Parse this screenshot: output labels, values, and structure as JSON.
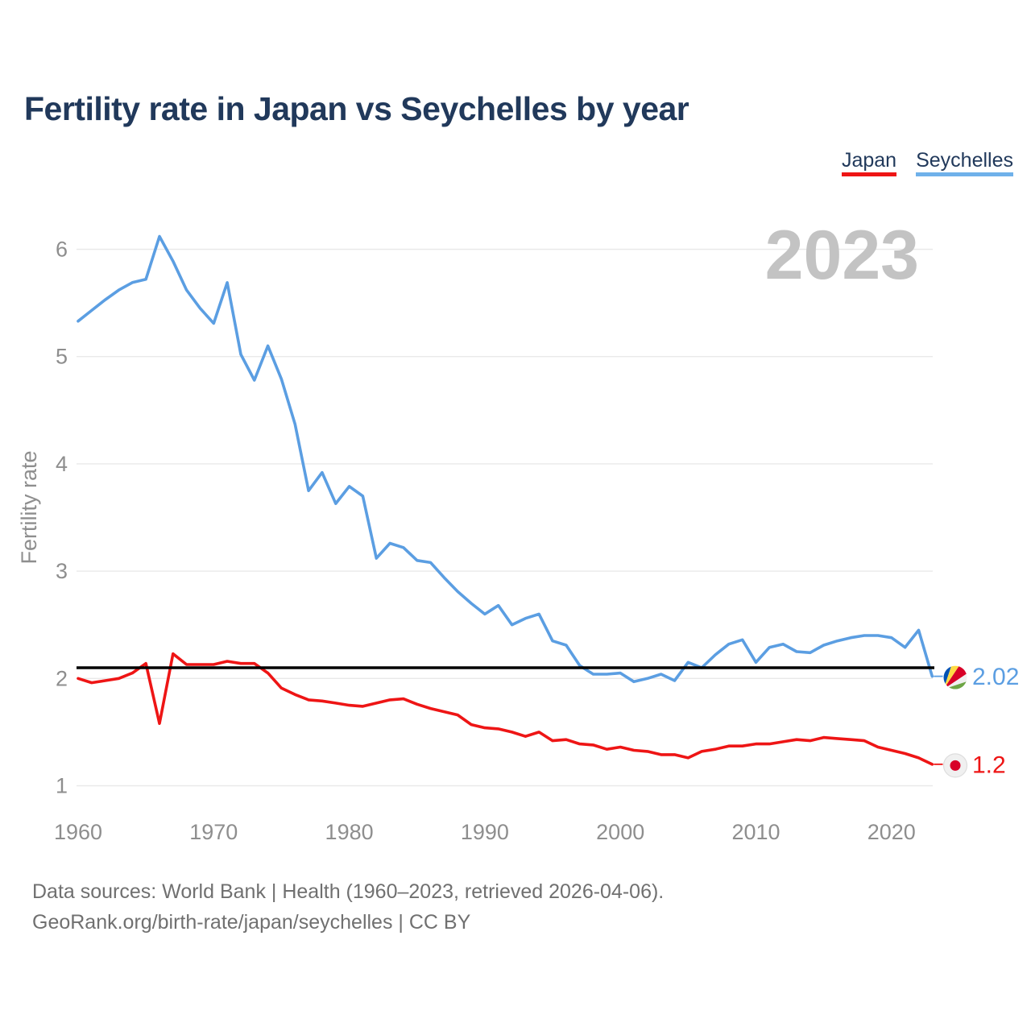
{
  "page": {
    "title": "Fertility rate in Japan vs Seychelles by year",
    "background_color": "#ffffff"
  },
  "legend": {
    "items": [
      {
        "label": "Japan",
        "color": "#ee1515"
      },
      {
        "label": "Seychelles",
        "color": "#6fb1ea"
      }
    ]
  },
  "footer": {
    "line1": "Data sources: World Bank | Health (1960–2023, retrieved 2026-04-06).",
    "line2": "GeoRank.org/birth-rate/japan/seychelles | CC BY"
  },
  "chart_data": {
    "type": "line",
    "title": "Fertility rate in Japan vs Seychelles by year",
    "xlabel": "",
    "ylabel": "Fertility rate",
    "watermark": "2023",
    "grid": "horizontal",
    "legend_position": "top-right",
    "axis_text_color": "#8e8e8e",
    "gridline_color": "#e9e9e9",
    "watermark_color": "#c3c3c3",
    "reference_line": {
      "value": 2.1,
      "color": "#000000"
    },
    "y_ticks": [
      1,
      2,
      3,
      4,
      5,
      6
    ],
    "x_ticks": [
      1960,
      1970,
      1980,
      1990,
      2000,
      2010,
      2020
    ],
    "ylim": [
      0.85,
      6.35
    ],
    "xlim": [
      1960,
      2023
    ],
    "x": [
      1960,
      1961,
      1962,
      1963,
      1964,
      1965,
      1966,
      1967,
      1968,
      1969,
      1970,
      1971,
      1972,
      1973,
      1974,
      1975,
      1976,
      1977,
      1978,
      1979,
      1980,
      1981,
      1982,
      1983,
      1984,
      1985,
      1986,
      1987,
      1988,
      1989,
      1990,
      1991,
      1992,
      1993,
      1994,
      1995,
      1996,
      1997,
      1998,
      1999,
      2000,
      2001,
      2002,
      2003,
      2004,
      2005,
      2006,
      2007,
      2008,
      2009,
      2010,
      2011,
      2012,
      2013,
      2014,
      2015,
      2016,
      2017,
      2018,
      2019,
      2020,
      2021,
      2022,
      2023
    ],
    "series": [
      {
        "name": "Seychelles",
        "color": "#5b9ee2",
        "end_label": "2.02",
        "flag": "seychelles",
        "values": [
          5.33,
          5.43,
          5.53,
          5.62,
          5.69,
          5.72,
          6.12,
          5.89,
          5.62,
          5.45,
          5.31,
          5.69,
          5.02,
          4.78,
          5.1,
          4.79,
          4.37,
          3.75,
          3.92,
          3.63,
          3.79,
          3.7,
          3.12,
          3.26,
          3.22,
          3.1,
          3.08,
          2.94,
          2.81,
          2.7,
          2.6,
          2.68,
          2.5,
          2.56,
          2.6,
          2.35,
          2.31,
          2.12,
          2.04,
          2.04,
          2.05,
          1.97,
          2.0,
          2.04,
          1.98,
          2.15,
          2.1,
          2.22,
          2.32,
          2.36,
          2.15,
          2.29,
          2.32,
          2.25,
          2.24,
          2.31,
          2.35,
          2.38,
          2.4,
          2.4,
          2.38,
          2.29,
          2.45,
          2.02
        ]
      },
      {
        "name": "Japan",
        "color": "#ee1515",
        "end_label": "1.2",
        "flag": "japan",
        "values": [
          2.0,
          1.96,
          1.98,
          2.0,
          2.05,
          2.14,
          1.58,
          2.23,
          2.13,
          2.13,
          2.13,
          2.16,
          2.14,
          2.14,
          2.05,
          1.91,
          1.85,
          1.8,
          1.79,
          1.77,
          1.75,
          1.74,
          1.77,
          1.8,
          1.81,
          1.76,
          1.72,
          1.69,
          1.66,
          1.57,
          1.54,
          1.53,
          1.5,
          1.46,
          1.5,
          1.42,
          1.43,
          1.39,
          1.38,
          1.34,
          1.36,
          1.33,
          1.32,
          1.29,
          1.29,
          1.26,
          1.32,
          1.34,
          1.37,
          1.37,
          1.39,
          1.39,
          1.41,
          1.43,
          1.42,
          1.45,
          1.44,
          1.43,
          1.42,
          1.36,
          1.33,
          1.3,
          1.26,
          1.2
        ]
      }
    ],
    "flag_colors": {
      "seychelles": {
        "blue": "#0052b4",
        "yellow": "#ffda44",
        "red": "#d80027",
        "white": "#f0f0f0",
        "green": "#6da544"
      },
      "japan": {
        "background": "#f0f0f0",
        "disc": "#d80027",
        "ring": "#dddddd"
      }
    }
  }
}
